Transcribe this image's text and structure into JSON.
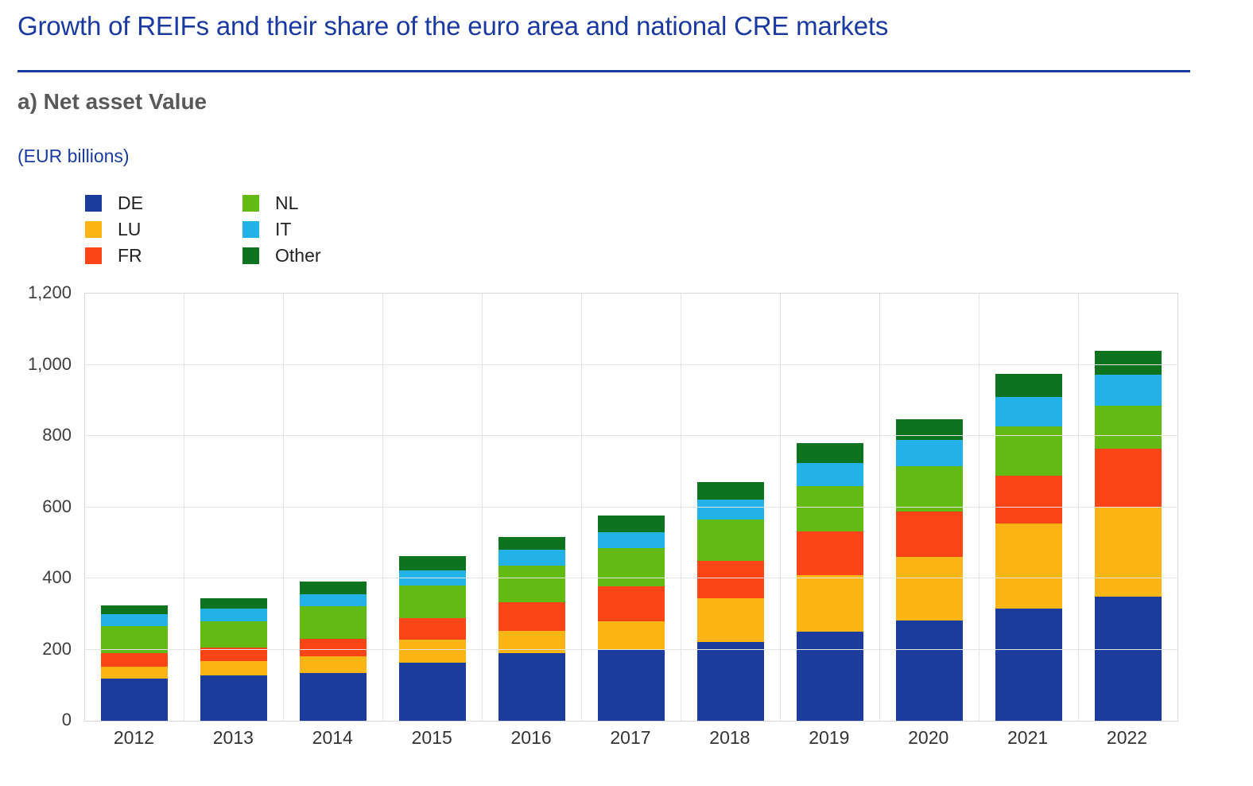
{
  "page": {
    "title": "Growth of REIFs and their share of the euro area and national CRE markets",
    "section_label": "a) Net asset Value",
    "unit_label": "(EUR billions)"
  },
  "colors": {
    "title_blue": "#1b3aa1",
    "heading_gray": "#595959",
    "gridline": "#e4e4e4"
  },
  "chart_data": {
    "type": "bar",
    "stacked": true,
    "title": "a) Net asset Value",
    "subtitle": "(EUR billions)",
    "xlabel": "",
    "ylabel": "EUR billions",
    "categories": [
      "2012",
      "2013",
      "2014",
      "2015",
      "2016",
      "2017",
      "2018",
      "2019",
      "2020",
      "2021",
      "2022"
    ],
    "series": [
      {
        "name": "DE",
        "color": "#1b3b9d",
        "values": [
          119,
          127,
          135,
          164,
          189,
          199,
          221,
          251,
          282,
          316,
          348
        ]
      },
      {
        "name": "LU",
        "color": "#fcb514",
        "values": [
          34,
          40,
          46,
          64,
          64,
          81,
          123,
          159,
          179,
          238,
          253
        ]
      },
      {
        "name": "FR",
        "color": "#fb4516",
        "values": [
          38,
          39,
          50,
          60,
          79,
          97,
          105,
          122,
          127,
          135,
          163
        ]
      },
      {
        "name": "NL",
        "color": "#63ba12",
        "values": [
          76,
          74,
          90,
          91,
          103,
          107,
          117,
          127,
          128,
          137,
          122
        ]
      },
      {
        "name": "IT",
        "color": "#22b2e8",
        "values": [
          32,
          36,
          34,
          43,
          46,
          46,
          56,
          66,
          74,
          83,
          86
        ]
      },
      {
        "name": "Other",
        "color": "#0d731f",
        "values": [
          26,
          28,
          36,
          40,
          35,
          47,
          49,
          55,
          57,
          65,
          67
        ]
      }
    ],
    "totals": [
      325,
      344,
      391,
      462,
      516,
      577,
      671,
      780,
      847,
      974,
      1039
    ],
    "ylim": [
      0,
      1200
    ],
    "ytick_interval": 200,
    "yticks_labels": [
      "0",
      "200",
      "400",
      "600",
      "800",
      "1,000",
      "1,200"
    ],
    "legend_entries": [
      "DE",
      "LU",
      "FR",
      "NL",
      "IT",
      "Other"
    ],
    "legend_position": "top-left",
    "grid": true
  }
}
